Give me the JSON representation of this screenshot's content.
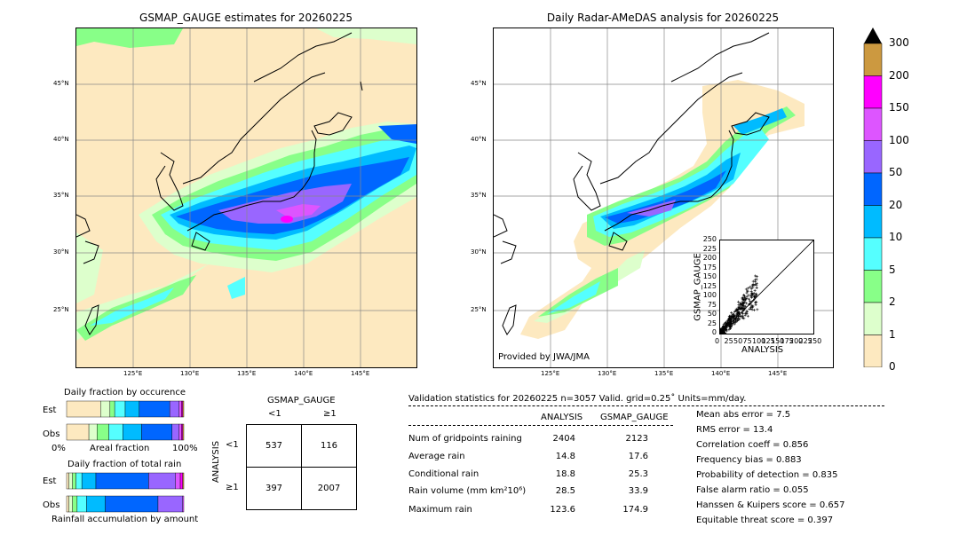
{
  "left_map": {
    "title": "GSMAP_GAUGE estimates for 20260225",
    "lat_labels": [
      "45°N",
      "40°N",
      "35°N",
      "30°N",
      "25°N"
    ],
    "lon_labels": [
      "125°E",
      "130°E",
      "135°E",
      "140°E",
      "145°E"
    ]
  },
  "right_map": {
    "title": "Daily Radar-AMeDAS analysis for 20260225",
    "lat_labels": [
      "45°N",
      "40°N",
      "35°N",
      "30°N",
      "25°N"
    ],
    "lon_labels": [
      "125°E",
      "130°E",
      "135°E",
      "140°E",
      "145°E"
    ],
    "credit": "Provided by JWA/JMA"
  },
  "colorbar": {
    "labels": [
      "300",
      "200",
      "150",
      "100",
      "50",
      "20",
      "10",
      "5",
      "2",
      "1",
      "0"
    ],
    "colors": [
      "#cc9940",
      "#ff00ff",
      "#dd55ff",
      "#9966ff",
      "#0066ff",
      "#00bbff",
      "#55ffff",
      "#88ff88",
      "#ddffcc",
      "#fde9c0"
    ]
  },
  "chart_data": [
    {
      "type": "scatter",
      "xlabel": "ANALYSIS",
      "ylabel": "GSMAP_GAUGE",
      "xlim": [
        0,
        250
      ],
      "ylim": [
        0,
        250
      ],
      "x_ticks": [
        "0",
        "25",
        "50",
        "75",
        "100",
        "125",
        "150",
        "175",
        "200",
        "225",
        "250"
      ],
      "y_ticks": [
        "0",
        "25",
        "50",
        "75",
        "100",
        "125",
        "150",
        "175",
        "200",
        "225",
        "250"
      ]
    },
    {
      "type": "bar",
      "title": "Daily fraction by occurence",
      "categories": [
        "Est",
        "Obs"
      ],
      "x_min_label": "0%",
      "x_mid_label": "Areal fraction",
      "x_max_label": "100%"
    },
    {
      "type": "bar",
      "title": "Daily fraction of total rain",
      "categories": [
        "Est",
        "Obs"
      ],
      "x_label": "Rainfall accumulation by amount"
    }
  ],
  "contingency": {
    "col_title": "GSMAP_GAUGE",
    "col_lt": "<1",
    "col_ge": "≥1",
    "row_title": "ANALYSIS",
    "row_lt": "<1",
    "row_ge": "≥1",
    "a": "537",
    "b": "116",
    "c": "397",
    "d": "2007"
  },
  "validation": {
    "header": "Validation statistics for 20260225  n=3057 Valid. grid=0.25˚ Units=mm/day.",
    "col_analysis": "ANALYSIS",
    "col_gsmap": "GSMAP_GAUGE",
    "rows": [
      {
        "label": "Num of gridpoints raining",
        "analysis": "2404",
        "gsmap": "2123"
      },
      {
        "label": "Average rain",
        "analysis": "14.8",
        "gsmap": "17.6"
      },
      {
        "label": "Conditional rain",
        "analysis": "18.8",
        "gsmap": "25.3"
      },
      {
        "label": "Rain volume (mm km²10⁶)",
        "analysis": "28.5",
        "gsmap": "33.9"
      },
      {
        "label": "Maximum rain",
        "analysis": "123.6",
        "gsmap": "174.9"
      }
    ],
    "scores": [
      "Mean abs error =    7.5",
      "RMS error =   13.4",
      "Correlation coeff =  0.856",
      "Frequency bias =  0.883",
      "Probability of detection =  0.835",
      "False alarm ratio =  0.055",
      "Hanssen & Kuipers score =  0.657",
      "Equitable threat score =  0.397"
    ]
  }
}
